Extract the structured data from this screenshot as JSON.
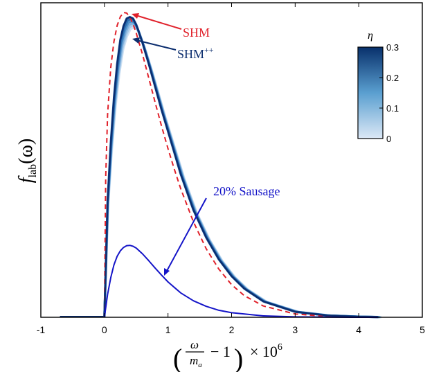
{
  "chart_data": {
    "type": "line",
    "xlabel": {
      "lead": "(",
      "numerator": "ω",
      "denominator": "m",
      "denominator_sub": "a",
      "minus_one": "− 1",
      "trail": ")",
      "times": "× 10",
      "power": "6"
    },
    "ylabel": {
      "f": "f",
      "sub": "lab",
      "arg": "(ω)"
    },
    "xlim": [
      -1,
      5
    ],
    "x_ticks": [
      "-1",
      "0",
      "1",
      "2",
      "3",
      "4",
      "5"
    ],
    "y_ticks": [],
    "grid": false,
    "series": [
      {
        "name": "SHM",
        "style": "dashed",
        "color": "#e0202a",
        "x": [
          0,
          0.02,
          0.05,
          0.1,
          0.15,
          0.2,
          0.25,
          0.3,
          0.35,
          0.4,
          0.45,
          0.5,
          0.6,
          0.7,
          0.8,
          0.9,
          1.0,
          1.1,
          1.2,
          1.4,
          1.6,
          1.8,
          2.0,
          2.2,
          2.5,
          3.0,
          3.5,
          4.0,
          4.3
        ],
        "y": [
          0,
          0.46,
          0.665,
          0.82,
          0.905,
          0.957,
          0.986,
          1.0,
          0.998,
          0.984,
          0.962,
          0.932,
          0.862,
          0.783,
          0.703,
          0.626,
          0.553,
          0.485,
          0.422,
          0.313,
          0.225,
          0.158,
          0.107,
          0.071,
          0.037,
          0.011,
          0.003,
          0.0007,
          0.0003
        ]
      },
      {
        "name": "SHM++",
        "style": "solid",
        "color": "#0b2d6e",
        "x": [
          0,
          0.05,
          0.1,
          0.15,
          0.2,
          0.25,
          0.3,
          0.35,
          0.4,
          0.45,
          0.5,
          0.6,
          0.7,
          0.8,
          0.9,
          1.0,
          1.1,
          1.2,
          1.4,
          1.6,
          1.8,
          2.0,
          2.2,
          2.5,
          3.0,
          3.5,
          4.0,
          4.3
        ],
        "y": [
          0,
          0.38,
          0.57,
          0.72,
          0.83,
          0.91,
          0.955,
          0.98,
          0.985,
          0.98,
          0.96,
          0.9,
          0.83,
          0.755,
          0.68,
          0.61,
          0.54,
          0.47,
          0.352,
          0.262,
          0.19,
          0.135,
          0.094,
          0.052,
          0.018,
          0.0058,
          0.0018,
          0.0008
        ]
      },
      {
        "name": "20% Sausage",
        "style": "solid",
        "color": "#1414c8",
        "x": [
          0,
          0.05,
          0.1,
          0.15,
          0.2,
          0.25,
          0.3,
          0.35,
          0.4,
          0.45,
          0.5,
          0.6,
          0.7,
          0.8,
          0.9,
          1.0,
          1.2,
          1.4,
          1.6,
          1.8,
          2.0,
          2.5,
          3.0,
          3.5,
          4.0,
          4.3
        ],
        "y": [
          0,
          0.075,
          0.13,
          0.172,
          0.2,
          0.218,
          0.229,
          0.235,
          0.236,
          0.233,
          0.227,
          0.208,
          0.185,
          0.161,
          0.138,
          0.116,
          0.08,
          0.054,
          0.036,
          0.023,
          0.015,
          0.0045,
          0.0013,
          0.0004,
          0.0001,
          0.0
        ]
      }
    ],
    "annotations": [
      {
        "text": "SHM",
        "color": "#e0202a"
      },
      {
        "text": "SHM",
        "superscript": "++",
        "color": "#0b2d6e"
      },
      {
        "text": "20% Sausage",
        "color": "#1414c8"
      }
    ],
    "colorbar": {
      "label": "η",
      "range": [
        0,
        0.3
      ],
      "ticks": [
        "0",
        "0.1",
        "0.2",
        "0.3"
      ],
      "color_low": "#dce8f6",
      "color_high": "#08306b"
    },
    "line_color": "#000000"
  }
}
